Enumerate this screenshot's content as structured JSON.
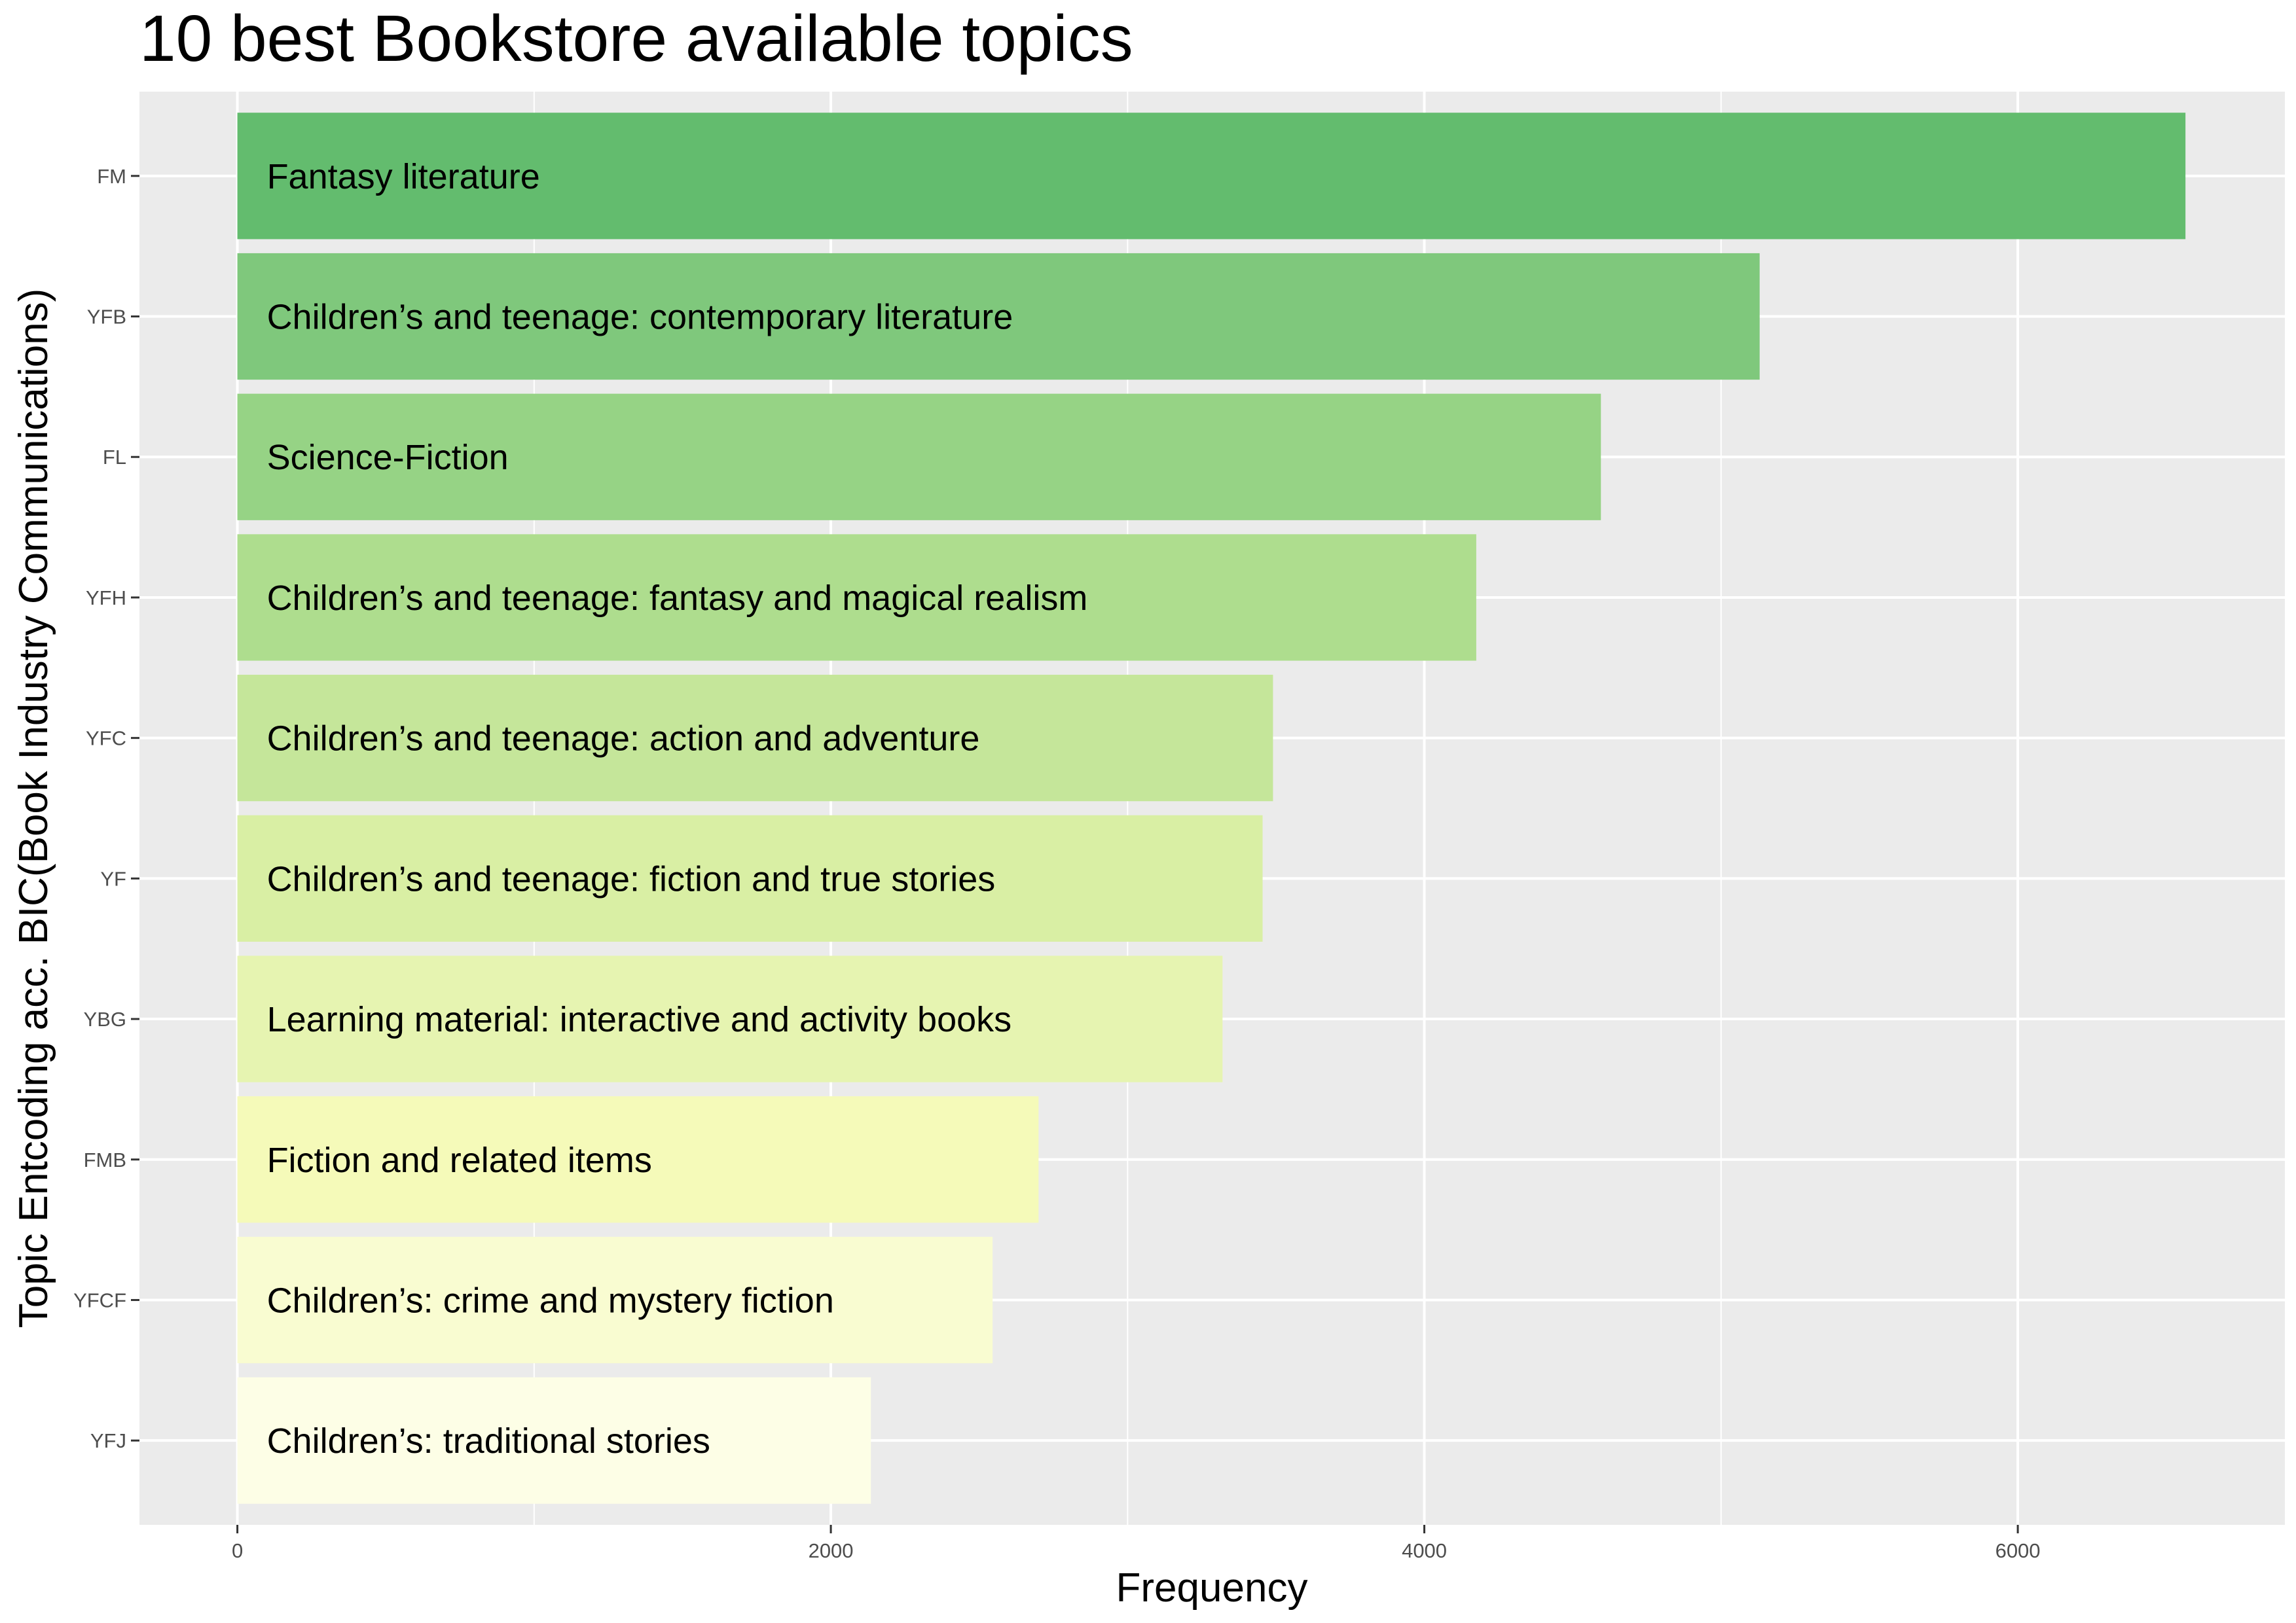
{
  "chart_data": {
    "type": "bar",
    "orientation": "horizontal",
    "title": "10 best Bookstore available topics",
    "xlabel": "Frequency",
    "ylabel": "Topic Entcoding acc. BIC(Book Industry Communications)",
    "xlim": [
      -330,
      6900
    ],
    "xticks": [
      0,
      2000,
      4000,
      6000
    ],
    "xtick_labels": [
      "0",
      "2000",
      "4000",
      "6000"
    ],
    "grid": true,
    "legend": "none",
    "categories": [
      "FM",
      "YFB",
      "FL",
      "YFH",
      "YFC",
      "YF",
      "YBG",
      "FMB",
      "YFCF",
      "YFJ"
    ],
    "bar_labels": [
      "Fantasy literature",
      "Children’s and teenage: contemporary literature",
      "Science-Fiction",
      "Children’s and teenage: fantasy and magical realism",
      "Children’s and teenage: action and adventure",
      "Children’s and teenage: fiction and true stories",
      "Learning material: interactive and activity books",
      "Fiction and related items",
      "Children’s: crime and mystery fiction",
      "Children’s: traditional stories"
    ],
    "values": [
      6565,
      5130,
      4595,
      4175,
      3490,
      3455,
      3320,
      2700,
      2545,
      2135
    ],
    "colors": [
      "#63BC6E",
      "#7FC87C",
      "#96D385",
      "#AEDD8E",
      "#C5E69A",
      "#D9EFA4",
      "#E6F4B1",
      "#F5FAB9",
      "#F9FCD1",
      "#FDFEE6"
    ],
    "panel_background": "#EBEBEB",
    "gridline_color": "#FFFFFF"
  }
}
